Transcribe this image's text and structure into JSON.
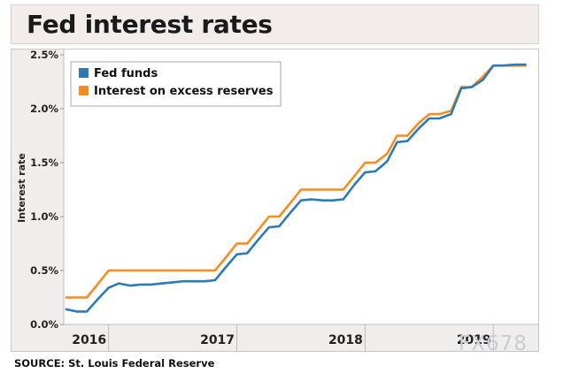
{
  "header": {
    "title": "Fed interest rates"
  },
  "footer": {
    "source": "SOURCE: St. Louis Federal Reserve"
  },
  "watermark": {
    "text": "FX678"
  },
  "colors": {
    "fed_funds": "#2b7bb9",
    "ioer": "#ff8c1a",
    "plot_bg": "#ffffff",
    "axis_strip": "#f0eeec"
  },
  "chart_data": {
    "type": "line",
    "title": "Fed interest rates",
    "xlabel": "",
    "ylabel": "Interest rate",
    "ylim": [
      0,
      2.5
    ],
    "xlim": [
      2015.65,
      2019.35
    ],
    "yticks": [
      0.0,
      0.5,
      1.0,
      1.5,
      2.0,
      2.5
    ],
    "ytick_labels": [
      "0.0%",
      "0.5%",
      "1.0%",
      "1.5%",
      "2.0%",
      "2.5%"
    ],
    "xticks": [
      2016,
      2017,
      2018,
      2019
    ],
    "xtick_labels": [
      "2016",
      "2017",
      "2018",
      "2019"
    ],
    "grid": false,
    "legend": "top-left",
    "series": [
      {
        "name": "Fed funds",
        "color": "#2b7bb9",
        "x": [
          2015.67,
          2015.75,
          2015.83,
          2015.92,
          2016.0,
          2016.08,
          2016.17,
          2016.25,
          2016.33,
          2016.42,
          2016.5,
          2016.58,
          2016.67,
          2016.75,
          2016.83,
          2016.92,
          2017.0,
          2017.08,
          2017.17,
          2017.25,
          2017.33,
          2017.42,
          2017.5,
          2017.58,
          2017.67,
          2017.75,
          2017.83,
          2017.92,
          2018.0,
          2018.08,
          2018.17,
          2018.25,
          2018.33,
          2018.42,
          2018.5,
          2018.58,
          2018.67,
          2018.75,
          2018.83,
          2018.92,
          2019.0,
          2019.08,
          2019.17,
          2019.25
        ],
        "values": [
          0.14,
          0.12,
          0.12,
          0.24,
          0.34,
          0.38,
          0.36,
          0.37,
          0.37,
          0.38,
          0.39,
          0.4,
          0.4,
          0.4,
          0.41,
          0.54,
          0.65,
          0.66,
          0.79,
          0.9,
          0.91,
          1.04,
          1.15,
          1.16,
          1.15,
          1.15,
          1.16,
          1.3,
          1.41,
          1.42,
          1.51,
          1.69,
          1.7,
          1.82,
          1.91,
          1.91,
          1.95,
          2.19,
          2.2,
          2.27,
          2.4,
          2.4,
          2.41,
          2.41
        ]
      },
      {
        "name": "Interest on excess reserves",
        "color": "#ff8c1a",
        "x": [
          2015.67,
          2015.75,
          2015.83,
          2015.92,
          2016.0,
          2016.08,
          2016.17,
          2016.25,
          2016.33,
          2016.42,
          2016.5,
          2016.58,
          2016.67,
          2016.75,
          2016.83,
          2016.92,
          2017.0,
          2017.08,
          2017.17,
          2017.25,
          2017.33,
          2017.42,
          2017.5,
          2017.58,
          2017.67,
          2017.75,
          2017.83,
          2017.92,
          2018.0,
          2018.08,
          2018.17,
          2018.25,
          2018.33,
          2018.42,
          2018.5,
          2018.58,
          2018.67,
          2018.75,
          2018.83,
          2018.92,
          2019.0,
          2019.08,
          2019.17,
          2019.25
        ],
        "values": [
          0.25,
          0.25,
          0.25,
          0.38,
          0.5,
          0.5,
          0.5,
          0.5,
          0.5,
          0.5,
          0.5,
          0.5,
          0.5,
          0.5,
          0.5,
          0.63,
          0.75,
          0.75,
          0.88,
          1.0,
          1.0,
          1.13,
          1.25,
          1.25,
          1.25,
          1.25,
          1.25,
          1.38,
          1.5,
          1.5,
          1.58,
          1.75,
          1.75,
          1.87,
          1.95,
          1.95,
          1.98,
          2.2,
          2.2,
          2.3,
          2.4,
          2.4,
          2.4,
          2.4
        ]
      }
    ]
  }
}
